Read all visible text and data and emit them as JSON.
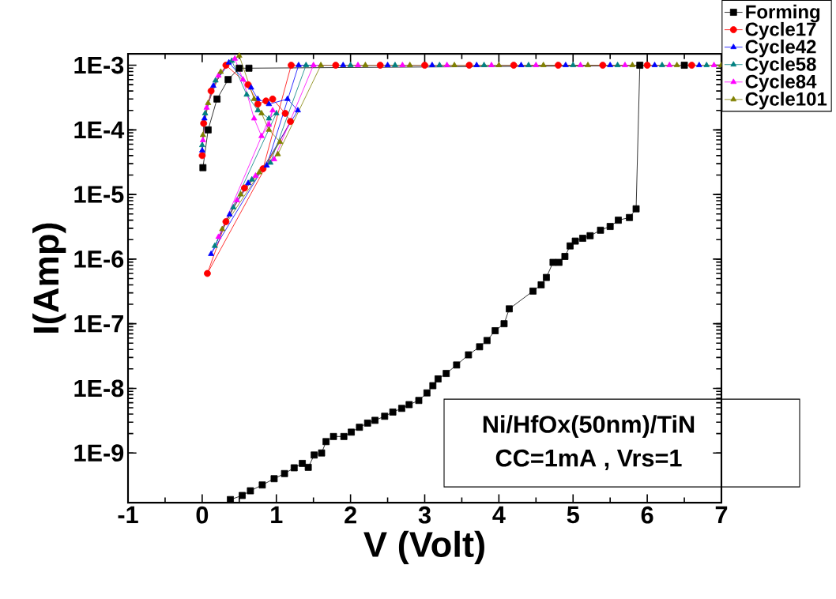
{
  "chart_data": {
    "type": "line",
    "xlabel": "V (Volt)",
    "ylabel": "I(Amp)",
    "log": "y",
    "legend": "top right",
    "xlim": [
      -1,
      7
    ],
    "xticks": [
      -1,
      0,
      1,
      2,
      3,
      4,
      5,
      6,
      7
    ],
    "ylim": [
      1.7e-10,
      0.0015
    ],
    "yticks": [
      {
        "value": 1e-09,
        "label": "1E-9"
      },
      {
        "value": 1e-08,
        "label": "1E-8"
      },
      {
        "value": 1e-07,
        "label": "1E-7"
      },
      {
        "value": 1e-06,
        "label": "1E-6"
      },
      {
        "value": 1e-05,
        "label": "1E-5"
      },
      {
        "value": 0.0001,
        "label": "1E-4"
      },
      {
        "value": 0.001,
        "label": "1E-3"
      }
    ],
    "annotations": [
      "Ni/HfOx(50nm)/TiN",
      "CC=1mA , Vrs=1"
    ],
    "series": [
      {
        "name": "Forming",
        "color": "#000000",
        "marker": "square",
        "x": [
          0.38,
          0.54,
          0.65,
          0.81,
          0.97,
          1.11,
          1.24,
          1.35,
          1.43,
          1.51,
          1.61,
          1.67,
          1.77,
          1.91,
          2.01,
          2.12,
          2.23,
          2.33,
          2.46,
          2.57,
          2.69,
          2.79,
          2.92,
          3.03,
          3.11,
          3.18,
          3.29,
          3.43,
          3.59,
          3.74,
          3.84,
          3.95,
          4.07,
          4.14,
          4.46,
          4.57,
          4.64,
          4.73,
          4.81,
          4.89,
          4.96,
          5.03,
          5.13,
          5.23,
          5.37,
          5.5,
          5.61,
          5.76,
          5.85,
          5.9,
          6.5,
          0.63,
          0.5,
          0.35,
          0.2,
          0.08,
          0.01
        ],
        "values": [
          1.9e-10,
          2.2e-10,
          2.6e-10,
          3.2e-10,
          4e-10,
          4.8e-10,
          5.9e-10,
          6.9e-10,
          6e-10,
          9.3e-10,
          1e-09,
          1.5e-09,
          1.8e-09,
          1.8e-09,
          2.1e-09,
          2.5e-09,
          2.9e-09,
          3.2e-09,
          3.7e-09,
          4.3e-09,
          4.9e-09,
          5.6e-09,
          6.5e-09,
          8.5e-09,
          1.1e-08,
          1.4e-08,
          1.7e-08,
          2.3e-08,
          3.3e-08,
          4.4e-08,
          5.5e-08,
          7.8e-08,
          1e-07,
          1.7e-07,
          3.2e-07,
          4e-07,
          5.2e-07,
          8.9e-07,
          8.9e-07,
          1.1e-06,
          1.6e-06,
          1.9e-06,
          2.1e-06,
          2.3e-06,
          2.8e-06,
          3.2e-06,
          4e-06,
          4.4e-06,
          6e-06,
          0.001,
          0.001,
          0.0009,
          0.0009,
          0.0006,
          0.0003,
          0.0001,
          2.6e-05
        ]
      },
      {
        "name": "Cycle17",
        "color": "#ff0000",
        "marker": "circle",
        "x": [
          0.0,
          0.02,
          0.12,
          0.32,
          0.46,
          0.62,
          0.75,
          0.86,
          0.95,
          1.12,
          1.19,
          0.07,
          0.32,
          0.57,
          0.82,
          1.2,
          1.8,
          2.4,
          3.0,
          3.6,
          4.2,
          4.8,
          5.4,
          6.0,
          6.6
        ],
        "values": [
          4e-05,
          0.000126,
          0.0004,
          0.001,
          null,
          0.0005,
          0.00025,
          0.00028,
          0.0003,
          0.00018,
          0.000135,
          6e-07,
          3.8e-06,
          1.26e-05,
          2.5e-05,
          0.001,
          0.001,
          0.001,
          0.001,
          0.001,
          0.001,
          0.001,
          0.001,
          0.001,
          0.001
        ]
      },
      {
        "name": "Cycle42",
        "color": "#0000ff",
        "marker": "triangle",
        "x": [
          0.0,
          0.03,
          0.15,
          0.36,
          0.66,
          0.75,
          0.9,
          1.15,
          1.29,
          0.12,
          0.37,
          0.62,
          0.87,
          1.3,
          1.9,
          2.5,
          3.1,
          3.7,
          4.3,
          4.9,
          5.5,
          6.1,
          6.7
        ],
        "values": [
          4.8e-05,
          0.00015,
          0.00048,
          0.0011,
          0.00045,
          0.0003,
          0.00025,
          0.0003,
          0.0002,
          1.2e-06,
          4.9e-06,
          1.5e-05,
          2.8e-05,
          0.001,
          0.001,
          0.001,
          0.001,
          0.001,
          0.001,
          0.001,
          0.001,
          0.001,
          0.001
        ]
      },
      {
        "name": "Cycle58",
        "color": "#008080",
        "marker": "triangle",
        "x": [
          0.0,
          0.04,
          0.18,
          0.4,
          0.6,
          0.75,
          0.9,
          1.0,
          0.17,
          0.42,
          0.67,
          0.92,
          1.4,
          2.0,
          2.6,
          3.2,
          3.8,
          4.4,
          5.0,
          5.6,
          6.2,
          6.8
        ],
        "values": [
          5.8e-05,
          0.00018,
          0.00058,
          0.00117,
          0.00035,
          0.0002,
          0.00015,
          0.00018,
          1.6e-06,
          6.3e-06,
          1.7e-05,
          3.1e-05,
          0.001,
          0.001,
          0.001,
          0.001,
          0.001,
          0.001,
          0.001,
          0.001,
          0.001,
          0.001
        ]
      },
      {
        "name": "Cycle84",
        "color": "#ff00ff",
        "marker": "triangle",
        "x": [
          0.01,
          0.06,
          0.22,
          0.44,
          0.55,
          0.7,
          0.8,
          0.9,
          0.95,
          0.22,
          0.47,
          0.72,
          0.97,
          1.5,
          2.1,
          2.7,
          3.3,
          3.9,
          4.5,
          5.1,
          5.7,
          6.3,
          6.9
        ],
        "values": [
          6.9e-05,
          0.00022,
          0.00069,
          0.00126,
          0.0006,
          0.00015,
          8e-05,
          0.00012,
          0.0002,
          2.2e-06,
          8.1e-06,
          1.95e-05,
          3.5e-05,
          0.001,
          0.001,
          0.001,
          0.001,
          0.001,
          0.001,
          0.001,
          0.001,
          0.001,
          0.001
        ]
      },
      {
        "name": "Cycle101",
        "color": "#808000",
        "marker": "triangle",
        "x": [
          0.01,
          0.08,
          0.25,
          0.5,
          0.7,
          0.8,
          0.9,
          1.05,
          0.27,
          0.52,
          0.77,
          1.02,
          1.6,
          2.2,
          2.8,
          3.4,
          4.0,
          4.6,
          5.2,
          5.8,
          6.4,
          7.0
        ],
        "values": [
          8.3e-05,
          0.00026,
          0.00079,
          0.0014,
          0.0003,
          0.00018,
          0.0001,
          6.5e-05,
          2.9e-06,
          1e-05,
          2.2e-05,
          4.2e-05,
          0.001,
          0.001,
          0.001,
          0.001,
          0.001,
          0.001,
          0.001,
          0.001,
          0.001,
          0.001
        ]
      }
    ]
  }
}
